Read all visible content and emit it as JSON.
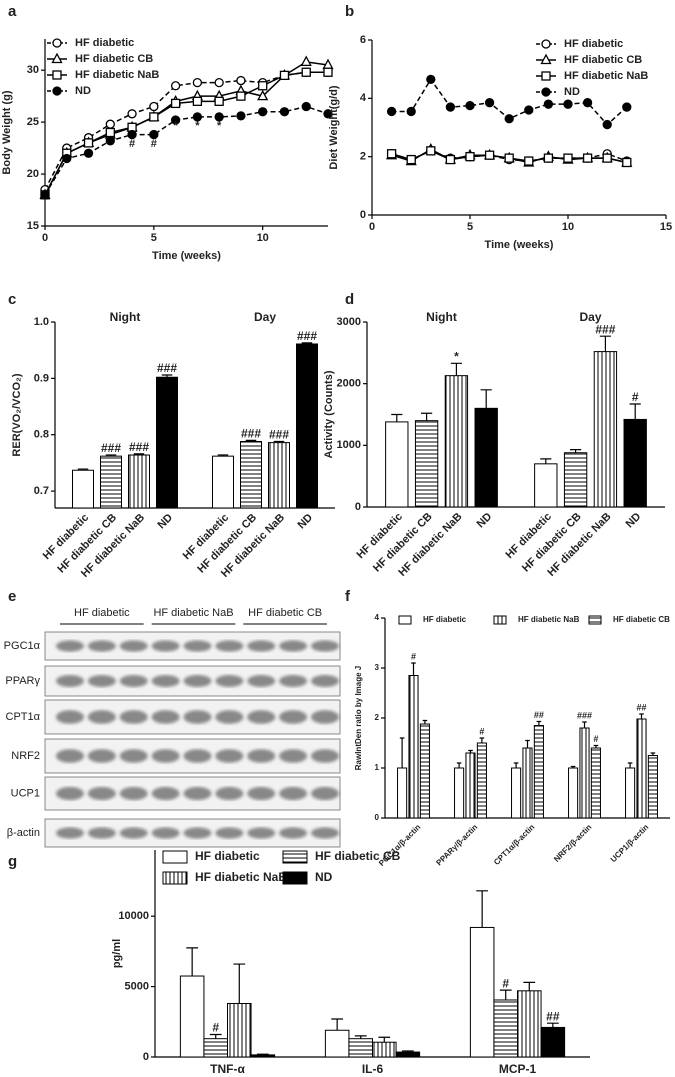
{
  "chart_data": [
    {
      "panel": "a",
      "type": "line",
      "x": [
        0,
        1,
        2,
        3,
        4,
        5,
        6,
        7,
        8,
        9,
        10,
        11,
        12,
        13
      ],
      "xlim": [
        0,
        13
      ],
      "xticks": [
        0,
        5,
        10
      ],
      "ylim": [
        15,
        33
      ],
      "yticks": [
        15,
        20,
        25,
        30
      ],
      "xlabel": "Time (weeks)",
      "ylabel": "Body Weight (g)",
      "legend": "upper left",
      "series": [
        {
          "name": "HF diabetic",
          "color": "#000000",
          "marker": "circle-open",
          "dashed": true,
          "values": [
            18.5,
            22.5,
            23.5,
            24.8,
            25.8,
            26.5,
            28.5,
            28.8,
            28.8,
            29.0,
            28.8,
            29.5,
            29.8,
            29.8
          ]
        },
        {
          "name": "HF diabetic CB",
          "color": "#000000",
          "marker": "triangle-open",
          "dashed": false,
          "values": [
            18.0,
            22.0,
            23.0,
            23.8,
            24.5,
            25.5,
            27.0,
            27.5,
            27.5,
            28.0,
            27.5,
            29.5,
            30.8,
            30.5
          ]
        },
        {
          "name": "HF diabetic NaB",
          "color": "#000000",
          "marker": "square-open",
          "dashed": false,
          "values": [
            18.0,
            22.0,
            23.0,
            24.0,
            24.5,
            25.5,
            26.8,
            27.0,
            27.0,
            27.5,
            28.5,
            29.5,
            29.8,
            29.8
          ]
        },
        {
          "name": "ND",
          "color": "#000000",
          "marker": "circle-filled",
          "dashed": true,
          "values": [
            18.0,
            21.5,
            22.0,
            23.2,
            23.8,
            23.8,
            25.2,
            25.5,
            25.5,
            25.6,
            26.0,
            26.0,
            26.5,
            25.8
          ]
        }
      ],
      "annotations": [
        {
          "text": "#",
          "x": 4,
          "y": 22.9
        },
        {
          "text": "#",
          "x": 5,
          "y": 22.9
        },
        {
          "text": "*",
          "x": 6,
          "y": 24.6
        },
        {
          "text": "*",
          "x": 7,
          "y": 24.6
        },
        {
          "text": "*",
          "x": 8,
          "y": 24.6
        }
      ]
    },
    {
      "panel": "b",
      "type": "line",
      "x": [
        1,
        2,
        3,
        4,
        5,
        6,
        7,
        8,
        9,
        10,
        11,
        12,
        13
      ],
      "xlim": [
        0,
        15
      ],
      "xticks": [
        0,
        5,
        10,
        15
      ],
      "ylim": [
        0,
        6
      ],
      "yticks": [
        0,
        2,
        4,
        6
      ],
      "xlabel": "Time (weeks)",
      "ylabel": "Diet Weight(g/d)",
      "legend": "upper right",
      "series": [
        {
          "name": "HF diabetic",
          "color": "#000000",
          "marker": "circle-open",
          "dashed": true,
          "values": [
            2.1,
            1.9,
            2.2,
            1.95,
            2.0,
            2.05,
            1.9,
            1.85,
            1.95,
            1.95,
            1.95,
            2.1,
            1.85
          ]
        },
        {
          "name": "HF diabetic CB",
          "color": "#000000",
          "marker": "triangle-open",
          "dashed": false,
          "values": [
            2.05,
            1.85,
            2.25,
            1.9,
            2.05,
            2.05,
            1.95,
            1.8,
            2.0,
            1.9,
            1.95,
            1.95,
            1.8
          ]
        },
        {
          "name": "HF diabetic NaB",
          "color": "#000000",
          "marker": "square-open",
          "dashed": false,
          "values": [
            2.1,
            1.9,
            2.2,
            1.9,
            2.0,
            2.05,
            1.95,
            1.85,
            1.95,
            1.95,
            1.95,
            1.95,
            1.8
          ]
        },
        {
          "name": "ND",
          "color": "#000000",
          "marker": "circle-filled",
          "dashed": true,
          "values": [
            3.55,
            3.55,
            4.65,
            3.7,
            3.75,
            3.85,
            3.3,
            3.6,
            3.8,
            3.8,
            3.85,
            3.1,
            3.7
          ]
        }
      ]
    },
    {
      "panel": "c",
      "type": "bar",
      "categories": [
        "Night",
        "Day"
      ],
      "ylim": [
        0.67,
        1.0
      ],
      "yticks": [
        0.7,
        0.8,
        0.9,
        {
          "value": 1.0,
          "label": "1.0"
        }
      ],
      "ylabel": "RER(VO₂/VCO₂)",
      "series": [
        {
          "name": "HF diabetic",
          "color": "#ffffff",
          "pattern": "none",
          "values": [
            0.737,
            0.762
          ],
          "errors": [
            0.002,
            0.002
          ],
          "significance": [
            null,
            null
          ]
        },
        {
          "name": "HF diabetic CB",
          "color": "#ffffff",
          "pattern": "horizontal",
          "values": [
            0.762,
            0.788
          ],
          "errors": [
            0.002,
            0.002
          ],
          "significance": [
            "###",
            "###"
          ]
        },
        {
          "name": "HF diabetic NaB",
          "color": "#ffffff",
          "pattern": "vertical",
          "values": [
            0.764,
            0.786
          ],
          "errors": [
            0.002,
            0.002
          ],
          "significance": [
            "###",
            "###"
          ]
        },
        {
          "name": "ND",
          "color": "#000000",
          "pattern": "none",
          "values": [
            0.902,
            0.961
          ],
          "errors": [
            0.004,
            0.002
          ],
          "significance": [
            "###",
            "###"
          ]
        }
      ]
    },
    {
      "panel": "d",
      "type": "bar",
      "categories": [
        "Night",
        "Day"
      ],
      "ylim": [
        0,
        3000
      ],
      "yticks": [
        0,
        1000,
        2000,
        3000
      ],
      "ylabel": "Activity (Counts)",
      "series": [
        {
          "name": "HF diabetic",
          "color": "#ffffff",
          "pattern": "none",
          "values": [
            1380,
            700
          ],
          "errors": [
            120,
            80
          ],
          "significance": [
            null,
            null
          ]
        },
        {
          "name": "HF diabetic CB",
          "color": "#ffffff",
          "pattern": "horizontal",
          "values": [
            1400,
            880
          ],
          "errors": [
            120,
            50
          ],
          "significance": [
            null,
            null
          ]
        },
        {
          "name": "HF diabetic NaB",
          "color": "#ffffff",
          "pattern": "vertical",
          "values": [
            2130,
            2520
          ],
          "errors": [
            200,
            250
          ],
          "significance": [
            "*",
            "###"
          ]
        },
        {
          "name": "ND",
          "color": "#000000",
          "pattern": "none",
          "values": [
            1600,
            1420
          ],
          "errors": [
            300,
            250
          ],
          "significance": [
            null,
            "#"
          ]
        }
      ]
    },
    {
      "panel": "f",
      "type": "bar",
      "categories": [
        "PGC1α/β-actin",
        "PPARγ/β-actin",
        "CPT1α/β-actin",
        "NRF2/β-actin",
        "UCP1/β-actin"
      ],
      "ylim": [
        0,
        4
      ],
      "yticks": [
        0,
        1,
        2,
        3,
        4
      ],
      "ylabel": "RawIntDen ratio by Image J",
      "series": [
        {
          "name": "HF diabetic",
          "color": "#ffffff",
          "pattern": "none",
          "values": [
            1,
            1,
            1,
            1,
            1
          ],
          "errors": [
            0.6,
            0.1,
            0.1,
            0.03,
            0.1
          ],
          "significance": [
            null,
            null,
            null,
            null,
            null
          ]
        },
        {
          "name": "HF diabetic NaB",
          "color": "#ffffff",
          "pattern": "vertical",
          "values": [
            2.85,
            1.3,
            1.4,
            1.8,
            1.98
          ],
          "errors": [
            0.25,
            0.05,
            0.15,
            0.12,
            0.1
          ],
          "significance": [
            "#",
            null,
            null,
            "###",
            "##"
          ]
        },
        {
          "name": "HF diabetic CB",
          "color": "#ffffff",
          "pattern": "horizontal",
          "values": [
            1.88,
            1.5,
            1.85,
            1.4,
            1.25
          ],
          "errors": [
            0.07,
            0.1,
            0.08,
            0.05,
            0.05
          ],
          "significance": [
            null,
            "#",
            "##",
            "#",
            null
          ]
        }
      ]
    },
    {
      "panel": "g",
      "type": "bar",
      "categories": [
        "TNF-α",
        "IL-6",
        "MCP-1"
      ],
      "ylim": [
        0,
        14700
      ],
      "yticks": [
        0,
        5000,
        10000
      ],
      "ylabel": "pg/ml",
      "series": [
        {
          "name": "HF diabetic",
          "color": "#ffffff",
          "pattern": "none",
          "values": [
            5750,
            1900,
            9200
          ],
          "errors": [
            2000,
            800,
            2600
          ],
          "significance": [
            null,
            null,
            null
          ]
        },
        {
          "name": "HF diabetic CB",
          "color": "#ffffff",
          "pattern": "horizontal",
          "values": [
            1300,
            1300,
            4050
          ],
          "errors": [
            300,
            200,
            700
          ],
          "significance": [
            "#",
            null,
            "#"
          ]
        },
        {
          "name": "HF diabetic NaB",
          "color": "#ffffff",
          "pattern": "vertical",
          "values": [
            3800,
            1050,
            4700
          ],
          "errors": [
            2800,
            350,
            600
          ],
          "significance": [
            null,
            null,
            null
          ]
        },
        {
          "name": "ND",
          "color": "#000000",
          "pattern": "none",
          "values": [
            150,
            350,
            2100
          ],
          "errors": [
            50,
            80,
            300
          ],
          "significance": [
            null,
            null,
            "##"
          ]
        }
      ]
    }
  ],
  "blot": {
    "panel": "e",
    "groups": [
      "HF diabetic",
      "HF diabetic NaB",
      "HF diabetic CB"
    ],
    "rows": [
      "PGC1α",
      "PPARγ",
      "CPT1α",
      "NRF2",
      "UCP1",
      "β-actin"
    ]
  }
}
